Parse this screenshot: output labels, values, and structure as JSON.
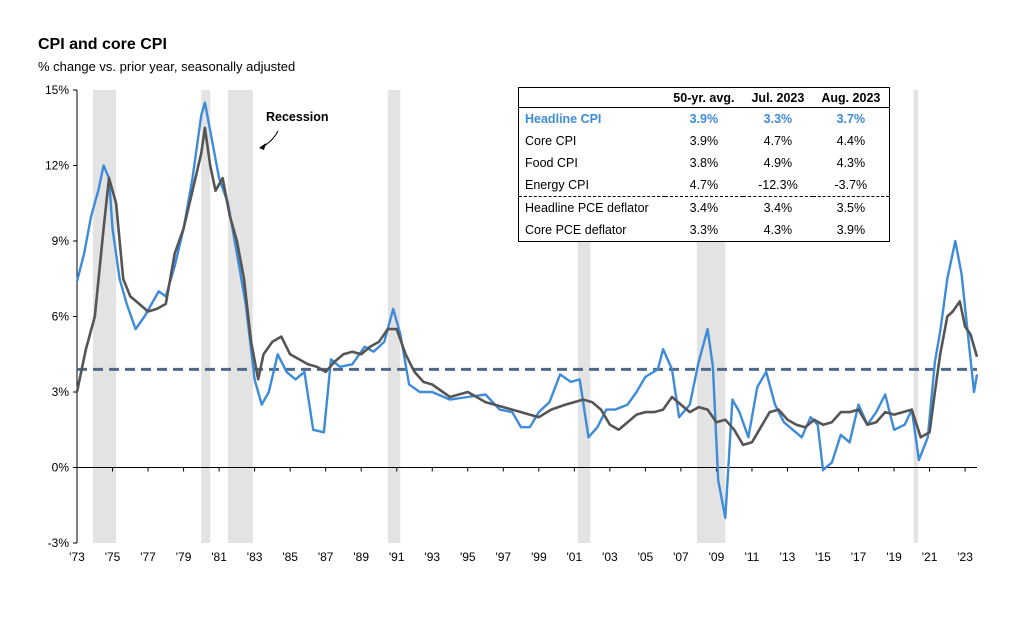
{
  "title": "CPI and core CPI",
  "subtitle": "% change vs. prior year, seasonally adjusted",
  "annotation": "Recession",
  "colors": {
    "headline": "#3d8bd9",
    "core": "#555555",
    "average": "#4f6b8a",
    "recession": "#e3e3e3"
  },
  "table": {
    "headers": [
      "",
      "50-yr. avg.",
      "Jul. 2023",
      "Aug. 2023"
    ],
    "rows": [
      {
        "label": "Headline CPI",
        "avg": "3.9%",
        "jul": "3.3%",
        "aug": "3.7%"
      },
      {
        "label": "Core CPI",
        "avg": "3.9%",
        "jul": "4.7%",
        "aug": "4.4%"
      },
      {
        "label": "Food CPI",
        "avg": "3.8%",
        "jul": "4.9%",
        "aug": "4.3%"
      },
      {
        "label": "Energy CPI",
        "avg": "4.7%",
        "jul": "-12.3%",
        "aug": "-3.7%"
      },
      {
        "label": "Headline PCE deflator",
        "avg": "3.4%",
        "jul": "3.4%",
        "aug": "3.5%"
      },
      {
        "label": "Core PCE deflator",
        "avg": "3.3%",
        "jul": "4.3%",
        "aug": "3.9%"
      }
    ]
  },
  "chart_data": {
    "type": "line",
    "title": "CPI and core CPI",
    "subtitle": "% change vs. prior year, seasonally adjusted",
    "xlabel": "",
    "ylabel": "",
    "xlim": [
      1973,
      2023.67
    ],
    "ylim": [
      -3,
      15
    ],
    "yticks": [
      "-3%",
      "0%",
      "3%",
      "6%",
      "9%",
      "12%",
      "15%"
    ],
    "xticks": [
      "'73",
      "'75",
      "'77",
      "'79",
      "'81",
      "'83",
      "'85",
      "'87",
      "'89",
      "'91",
      "'93",
      "'95",
      "'97",
      "'99",
      "'01",
      "'03",
      "'05",
      "'07",
      "'09",
      "'11",
      "'13",
      "'15",
      "'17",
      "'19",
      "'21",
      "'23"
    ],
    "legend": "none",
    "grid": false,
    "average_line": 3.9,
    "recessions": [
      [
        1973.9,
        1975.2
      ],
      [
        1980.0,
        1980.5
      ],
      [
        1981.5,
        1982.9
      ],
      [
        1990.5,
        1991.2
      ],
      [
        2001.2,
        2001.9
      ],
      [
        2007.9,
        2009.5
      ],
      [
        2020.1,
        2020.35
      ]
    ],
    "series": [
      {
        "key": "headline",
        "x": [
          1973.0,
          1973.4,
          1973.8,
          1974.2,
          1974.5,
          1974.8,
          1975.0,
          1975.4,
          1975.8,
          1976.3,
          1976.8,
          1977.2,
          1977.6,
          1978.0,
          1978.5,
          1979.0,
          1979.5,
          1980.0,
          1980.2,
          1980.6,
          1981.0,
          1981.5,
          1982.0,
          1982.5,
          1983.0,
          1983.4,
          1983.8,
          1984.3,
          1984.8,
          1985.3,
          1985.8,
          1986.3,
          1986.9,
          1987.3,
          1987.8,
          1988.5,
          1989.2,
          1989.7,
          1990.3,
          1990.8,
          1991.2,
          1991.7,
          1992.3,
          1993.0,
          1994.0,
          1995.0,
          1996.0,
          1996.8,
          1997.5,
          1998.0,
          1998.5,
          1999.0,
          1999.6,
          2000.2,
          2000.8,
          2001.3,
          2001.8,
          2002.3,
          2002.8,
          2003.3,
          2004.0,
          2004.5,
          2005.0,
          2005.7,
          2006.0,
          2006.5,
          2006.9,
          2007.5,
          2008.0,
          2008.5,
          2008.8,
          2009.1,
          2009.5,
          2009.9,
          2010.3,
          2010.8,
          2011.3,
          2011.8,
          2012.3,
          2012.8,
          2013.3,
          2013.8,
          2014.3,
          2014.7,
          2015.0,
          2015.5,
          2016.0,
          2016.5,
          2017.0,
          2017.5,
          2018.0,
          2018.5,
          2019.0,
          2019.6,
          2020.0,
          2020.4,
          2020.9,
          2021.3,
          2021.6,
          2022.0,
          2022.45,
          2022.8,
          2023.2,
          2023.5,
          2023.67
        ],
        "values": [
          7.4,
          8.5,
          10.0,
          11.0,
          12.0,
          11.5,
          9.5,
          7.5,
          6.5,
          5.5,
          6.0,
          6.5,
          7.0,
          6.8,
          8.0,
          9.5,
          11.5,
          14.0,
          14.5,
          13.0,
          11.5,
          10.5,
          8.5,
          6.5,
          3.5,
          2.5,
          3.0,
          4.5,
          3.8,
          3.5,
          3.8,
          1.5,
          1.4,
          4.3,
          4.0,
          4.1,
          4.8,
          4.6,
          5.0,
          6.3,
          5.3,
          3.3,
          3.0,
          3.0,
          2.7,
          2.8,
          2.9,
          2.3,
          2.2,
          1.6,
          1.6,
          2.2,
          2.6,
          3.7,
          3.4,
          3.5,
          1.2,
          1.6,
          2.3,
          2.3,
          2.5,
          3.0,
          3.6,
          3.9,
          4.7,
          3.9,
          2.0,
          2.5,
          4.2,
          5.5,
          4.0,
          -0.5,
          -2.0,
          2.7,
          2.2,
          1.2,
          3.2,
          3.8,
          2.5,
          1.8,
          1.5,
          1.2,
          2.0,
          1.7,
          -0.1,
          0.2,
          1.3,
          1.0,
          2.5,
          1.7,
          2.2,
          2.9,
          1.5,
          1.7,
          2.3,
          0.3,
          1.2,
          4.2,
          5.4,
          7.5,
          9.0,
          7.7,
          5.0,
          3.0,
          3.7
        ]
      },
      {
        "key": "core",
        "x": [
          1973.0,
          1973.5,
          1974.0,
          1974.5,
          1974.8,
          1975.2,
          1975.6,
          1976.0,
          1976.5,
          1977.0,
          1977.5,
          1978.0,
          1978.5,
          1979.0,
          1979.5,
          1980.0,
          1980.2,
          1980.5,
          1980.8,
          1981.2,
          1981.6,
          1982.0,
          1982.4,
          1982.8,
          1983.2,
          1983.5,
          1984.0,
          1984.5,
          1985.0,
          1985.5,
          1986.0,
          1986.5,
          1987.0,
          1987.5,
          1988.0,
          1988.5,
          1989.0,
          1989.5,
          1990.0,
          1990.5,
          1991.0,
          1991.5,
          1992.0,
          1992.5,
          1993.0,
          1994.0,
          1995.0,
          1996.0,
          1997.0,
          1998.0,
          1999.0,
          1999.7,
          2000.5,
          2001.0,
          2001.5,
          2002.0,
          2002.5,
          2003.0,
          2003.5,
          2004.0,
          2004.5,
          2005.0,
          2005.5,
          2006.0,
          2006.5,
          2007.0,
          2007.5,
          2008.0,
          2008.5,
          2009.0,
          2009.5,
          2010.0,
          2010.5,
          2011.0,
          2011.5,
          2012.0,
          2012.5,
          2013.0,
          2013.5,
          2014.0,
          2014.5,
          2015.0,
          2015.5,
          2016.0,
          2016.5,
          2017.0,
          2017.5,
          2018.0,
          2018.5,
          2019.0,
          2019.5,
          2020.0,
          2020.5,
          2021.0,
          2021.3,
          2021.6,
          2022.0,
          2022.3,
          2022.7,
          2023.0,
          2023.3,
          2023.67
        ],
        "values": [
          3.0,
          4.7,
          6.0,
          9.5,
          11.5,
          10.5,
          7.5,
          6.8,
          6.5,
          6.2,
          6.3,
          6.5,
          8.5,
          9.5,
          11.0,
          12.5,
          13.5,
          12.0,
          11.0,
          11.5,
          10.0,
          9.0,
          7.5,
          5.0,
          3.5,
          4.5,
          5.0,
          5.2,
          4.5,
          4.3,
          4.1,
          4.0,
          3.8,
          4.2,
          4.5,
          4.6,
          4.5,
          4.8,
          5.0,
          5.5,
          5.5,
          4.5,
          3.8,
          3.4,
          3.3,
          2.8,
          3.0,
          2.6,
          2.4,
          2.2,
          2.0,
          2.3,
          2.5,
          2.6,
          2.7,
          2.6,
          2.3,
          1.7,
          1.5,
          1.8,
          2.1,
          2.2,
          2.2,
          2.3,
          2.8,
          2.5,
          2.2,
          2.4,
          2.3,
          1.8,
          1.9,
          1.5,
          0.9,
          1.0,
          1.6,
          2.2,
          2.3,
          1.9,
          1.7,
          1.6,
          1.9,
          1.7,
          1.8,
          2.2,
          2.2,
          2.3,
          1.7,
          1.8,
          2.2,
          2.1,
          2.2,
          2.3,
          1.2,
          1.4,
          3.0,
          4.5,
          6.0,
          6.2,
          6.6,
          5.6,
          5.3,
          4.4
        ]
      }
    ]
  }
}
